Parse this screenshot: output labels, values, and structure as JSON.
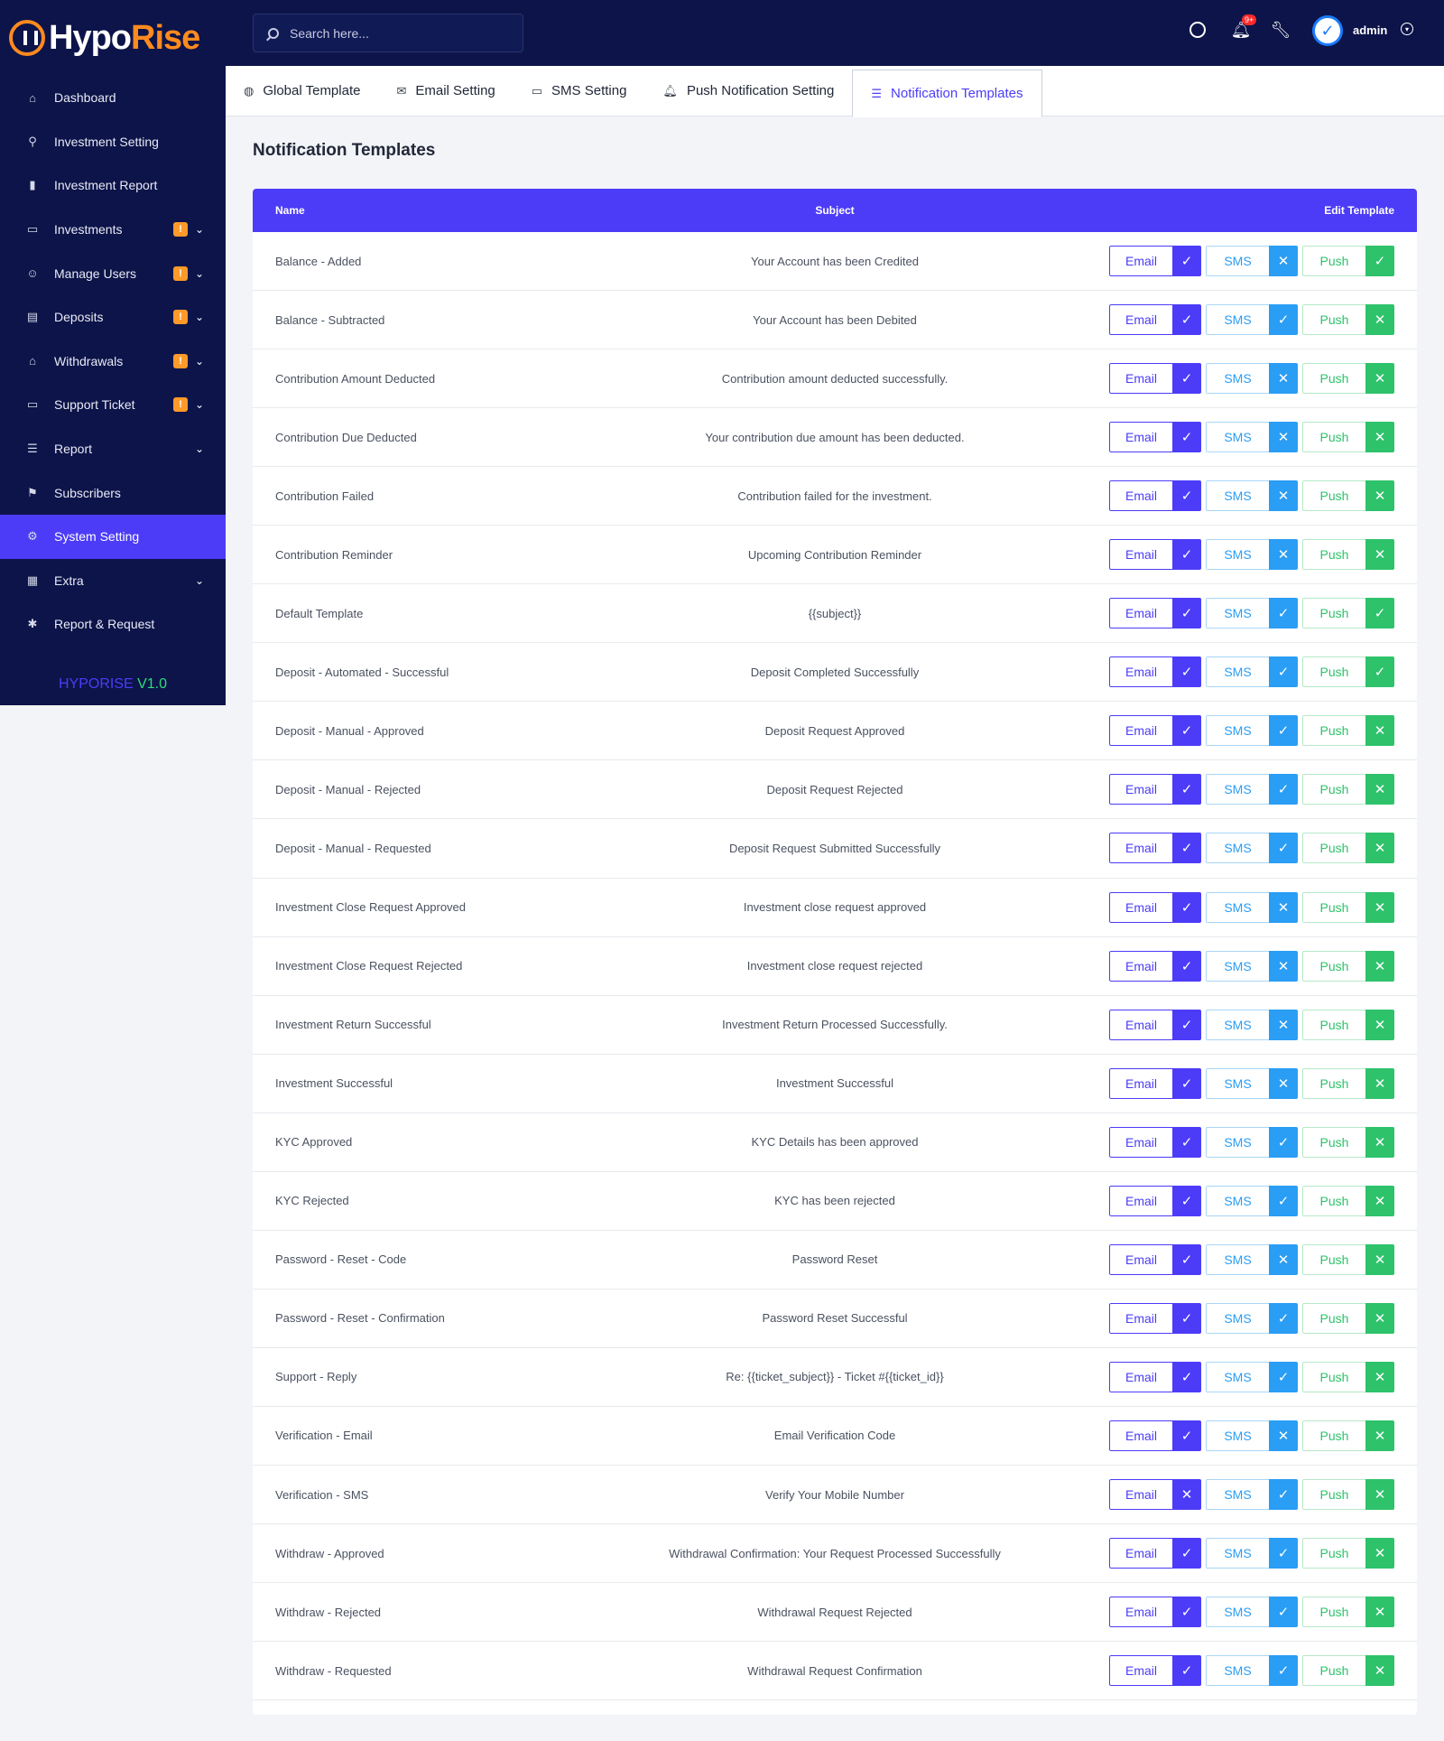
{
  "brand": {
    "name_part1": "Hypo",
    "name_part2": "Rise",
    "version_part1": "HYPORISE",
    "version_part2": "V1.0"
  },
  "search": {
    "placeholder": "Search here..."
  },
  "header": {
    "notification_count": "9+",
    "user_name": "admin"
  },
  "sidebar": {
    "items": [
      {
        "label": "Dashboard",
        "icon": "home-icon",
        "glyph": "⌂",
        "badge": "",
        "chevron": false
      },
      {
        "label": "Investment Setting",
        "icon": "network-icon",
        "glyph": "⚲",
        "badge": "",
        "chevron": false
      },
      {
        "label": "Investment Report",
        "icon": "bar-chart-icon",
        "glyph": "▮",
        "badge": "",
        "chevron": false
      },
      {
        "label": "Investments",
        "icon": "briefcase-icon",
        "glyph": "▭",
        "badge": "!",
        "chevron": true
      },
      {
        "label": "Manage Users",
        "icon": "users-icon",
        "glyph": "☺",
        "badge": "!",
        "chevron": true
      },
      {
        "label": "Deposits",
        "icon": "document-icon",
        "glyph": "▤",
        "badge": "!",
        "chevron": true
      },
      {
        "label": "Withdrawals",
        "icon": "bank-icon",
        "glyph": "⌂",
        "badge": "!",
        "chevron": true
      },
      {
        "label": "Support Ticket",
        "icon": "ticket-icon",
        "glyph": "▭",
        "badge": "!",
        "chevron": true
      },
      {
        "label": "Report",
        "icon": "list-icon",
        "glyph": "☰",
        "badge": "",
        "chevron": true
      },
      {
        "label": "Subscribers",
        "icon": "subscribers-icon",
        "glyph": "⚑",
        "badge": "",
        "chevron": false
      },
      {
        "label": "System Setting",
        "icon": "settings-icon",
        "glyph": "⚙",
        "badge": "",
        "chevron": false,
        "active": true
      },
      {
        "label": "Extra",
        "icon": "extra-icon",
        "glyph": "▦",
        "badge": "",
        "chevron": true
      },
      {
        "label": "Report & Request",
        "icon": "bug-icon",
        "glyph": "✱",
        "badge": "",
        "chevron": false
      }
    ]
  },
  "tabs": [
    {
      "label": "Global Template",
      "icon": "globe-icon",
      "glyph": "◍"
    },
    {
      "label": "Email Setting",
      "icon": "mail-icon",
      "glyph": "✉"
    },
    {
      "label": "SMS Setting",
      "icon": "message-icon",
      "glyph": "▭"
    },
    {
      "label": "Push Notification Setting",
      "icon": "bell-icon",
      "glyph": "🔔︎"
    },
    {
      "label": "Notification Templates",
      "icon": "list-icon",
      "glyph": "☰",
      "active": true
    }
  ],
  "page_title": "Notification Templates",
  "table": {
    "headers": {
      "name": "Name",
      "subject": "Subject",
      "edit": "Edit Template"
    },
    "channel_labels": {
      "email": "Email",
      "sms": "SMS",
      "push": "Push"
    },
    "rows": [
      {
        "name": "Balance - Added",
        "subject": "Your Account has been Credited",
        "email": true,
        "sms": false,
        "push": true
      },
      {
        "name": "Balance - Subtracted",
        "subject": "Your Account has been Debited",
        "email": true,
        "sms": true,
        "push": false
      },
      {
        "name": "Contribution Amount Deducted",
        "subject": "Contribution amount deducted successfully.",
        "email": true,
        "sms": false,
        "push": false
      },
      {
        "name": "Contribution Due Deducted",
        "subject": "Your contribution due amount has been deducted.",
        "email": true,
        "sms": false,
        "push": false
      },
      {
        "name": "Contribution Failed",
        "subject": "Contribution failed for the investment.",
        "email": true,
        "sms": false,
        "push": false
      },
      {
        "name": "Contribution Reminder",
        "subject": "Upcoming Contribution Reminder",
        "email": true,
        "sms": false,
        "push": false
      },
      {
        "name": "Default Template",
        "subject": "{{subject}}",
        "email": true,
        "sms": true,
        "push": true
      },
      {
        "name": "Deposit - Automated - Successful",
        "subject": "Deposit Completed Successfully",
        "email": true,
        "sms": true,
        "push": true
      },
      {
        "name": "Deposit - Manual - Approved",
        "subject": "Deposit Request Approved",
        "email": true,
        "sms": true,
        "push": false
      },
      {
        "name": "Deposit - Manual - Rejected",
        "subject": "Deposit Request Rejected",
        "email": true,
        "sms": true,
        "push": false
      },
      {
        "name": "Deposit - Manual - Requested",
        "subject": "Deposit Request Submitted Successfully",
        "email": true,
        "sms": true,
        "push": false
      },
      {
        "name": "Investment Close Request Approved",
        "subject": "Investment close request approved",
        "email": true,
        "sms": false,
        "push": false
      },
      {
        "name": "Investment Close Request Rejected",
        "subject": "Investment close request rejected",
        "email": true,
        "sms": false,
        "push": false
      },
      {
        "name": "Investment Return Successful",
        "subject": "Investment Return Processed Successfully.",
        "email": true,
        "sms": false,
        "push": false
      },
      {
        "name": "Investment Successful",
        "subject": "Investment Successful",
        "email": true,
        "sms": false,
        "push": false
      },
      {
        "name": "KYC Approved",
        "subject": "KYC Details has been approved",
        "email": true,
        "sms": true,
        "push": false
      },
      {
        "name": "KYC Rejected",
        "subject": "KYC has been rejected",
        "email": true,
        "sms": true,
        "push": false
      },
      {
        "name": "Password - Reset - Code",
        "subject": "Password Reset",
        "email": true,
        "sms": false,
        "push": false
      },
      {
        "name": "Password - Reset - Confirmation",
        "subject": "Password Reset Successful",
        "email": true,
        "sms": true,
        "push": false
      },
      {
        "name": "Support - Reply",
        "subject": "Re: {{ticket_subject}} - Ticket #{{ticket_id}}",
        "email": true,
        "sms": true,
        "push": false
      },
      {
        "name": "Verification - Email",
        "subject": "Email Verification Code",
        "email": true,
        "sms": false,
        "push": false
      },
      {
        "name": "Verification - SMS",
        "subject": "Verify Your Mobile Number",
        "email": false,
        "sms": true,
        "push": false
      },
      {
        "name": "Withdraw - Approved",
        "subject": "Withdrawal Confirmation: Your Request Processed Successfully",
        "email": true,
        "sms": true,
        "push": false
      },
      {
        "name": "Withdraw - Rejected",
        "subject": "Withdrawal Request Rejected",
        "email": true,
        "sms": true,
        "push": false
      },
      {
        "name": "Withdraw - Requested",
        "subject": "Withdrawal Request Confirmation",
        "email": true,
        "sms": true,
        "push": false
      }
    ]
  }
}
